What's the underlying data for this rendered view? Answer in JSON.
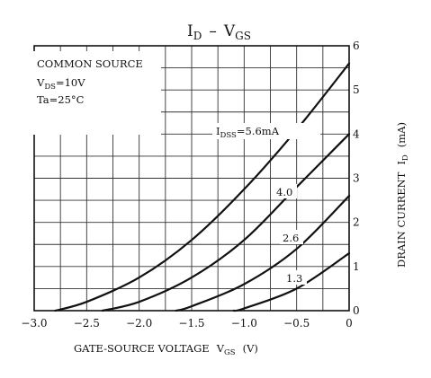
{
  "chart_data": {
    "type": "line",
    "title": {
      "main": "I",
      "main_sub": "D",
      "sep": "–",
      "v": "V",
      "v_sub": "GS"
    },
    "xlabel": {
      "text": "GATE-SOURCE VOLTAGE",
      "sym": "V",
      "sym_sub": "GS",
      "unit": "(V)"
    },
    "ylabel": {
      "text": "DRAIN CURRENT",
      "sym": "I",
      "sym_sub": "D",
      "unit": "(mA)"
    },
    "xlim": [
      -3.0,
      0
    ],
    "ylim": [
      0,
      6
    ],
    "xticks": [
      {
        "v": -3.0,
        "label": "−3.0"
      },
      {
        "v": -2.5,
        "label": "−2.5"
      },
      {
        "v": -2.0,
        "label": "−2.0"
      },
      {
        "v": -1.5,
        "label": "−1.5"
      },
      {
        "v": -1.0,
        "label": "−1.0"
      },
      {
        "v": -0.5,
        "label": "−0.5"
      },
      {
        "v": 0,
        "label": "0"
      }
    ],
    "yticks": [
      {
        "v": 0,
        "label": "0"
      },
      {
        "v": 1,
        "label": "1"
      },
      {
        "v": 2,
        "label": "2"
      },
      {
        "v": 3,
        "label": "3"
      },
      {
        "v": 4,
        "label": "4"
      },
      {
        "v": 5,
        "label": "5"
      },
      {
        "v": 6,
        "label": "6"
      }
    ],
    "grid": true,
    "conditions": [
      {
        "text": "COMMON SOURCE"
      },
      {
        "text": "V",
        "sub": "DS",
        "rest": "=10V"
      },
      {
        "text": "Ta=25°C"
      }
    ],
    "series": [
      {
        "idss_prefix": "I",
        "idss_sub": "DSS",
        "name": "=5.6mA",
        "x": [
          -2.8,
          -2.5,
          -2.0,
          -1.5,
          -1.0,
          -0.5,
          0
        ],
        "y": [
          0.0,
          0.2,
          0.75,
          1.6,
          2.75,
          4.1,
          5.6
        ]
      },
      {
        "name": "4.0",
        "x": [
          -2.35,
          -2.0,
          -1.5,
          -1.0,
          -0.5,
          0
        ],
        "y": [
          0.0,
          0.2,
          0.75,
          1.6,
          2.8,
          4.0
        ]
      },
      {
        "name": "2.6",
        "x": [
          -1.65,
          -1.5,
          -1.0,
          -0.5,
          0
        ],
        "y": [
          0.0,
          0.1,
          0.6,
          1.4,
          2.6
        ]
      },
      {
        "name": "1.3",
        "x": [
          -1.1,
          -1.0,
          -0.5,
          0
        ],
        "y": [
          0.0,
          0.05,
          0.5,
          1.3
        ]
      }
    ]
  }
}
